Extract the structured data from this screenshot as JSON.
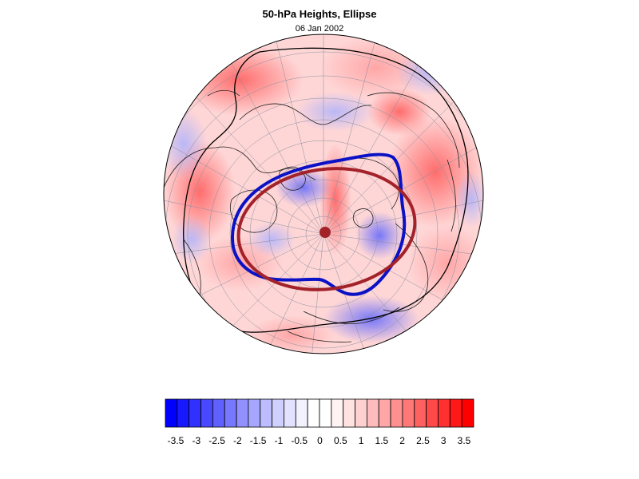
{
  "figure": {
    "title": "50-hPa Heights, Ellipse",
    "subtitle": "06 Jan 2002"
  },
  "map": {
    "projection": "north-polar-stereographic",
    "field": "height anomaly",
    "overlays": [
      {
        "name": "observed-vortex-contour",
        "color": "#0b12c6"
      },
      {
        "name": "fitted-ellipse",
        "color": "#a3222a"
      },
      {
        "name": "ellipse-center",
        "color": "#a3222a"
      }
    ]
  },
  "colorbar": {
    "levels": [
      -3.5,
      -3.25,
      -3,
      -2.75,
      -2.5,
      -2.25,
      -2,
      -1.75,
      -1.5,
      -1.25,
      -1,
      -0.75,
      -0.5,
      -0.25,
      0,
      0.25,
      0.5,
      0.75,
      1,
      1.25,
      1.5,
      1.75,
      2,
      2.25,
      2.5,
      2.75,
      3,
      3.25,
      3.5
    ],
    "tick_labels": [
      "-3.5",
      "-3",
      "-2.5",
      "-2",
      "-1.5",
      "-1",
      "-0.5",
      "0",
      "0.5",
      "1",
      "1.5",
      "2",
      "2.5",
      "3",
      "3.5"
    ],
    "colors": [
      "#0000ff",
      "#1818ff",
      "#3030ff",
      "#4848ff",
      "#6060ff",
      "#7878ff",
      "#9090ff",
      "#a6a6ff",
      "#bcbcff",
      "#d0d0ff",
      "#e2e2ff",
      "#f2f2ff",
      "#ffffff",
      "#ffffff",
      "#fff2f2",
      "#ffe2e2",
      "#ffd0d0",
      "#ffbcbc",
      "#ffa6a6",
      "#ff9090",
      "#ff7878",
      "#ff6060",
      "#ff4848",
      "#ff3030",
      "#ff1818",
      "#ff0000"
    ]
  }
}
